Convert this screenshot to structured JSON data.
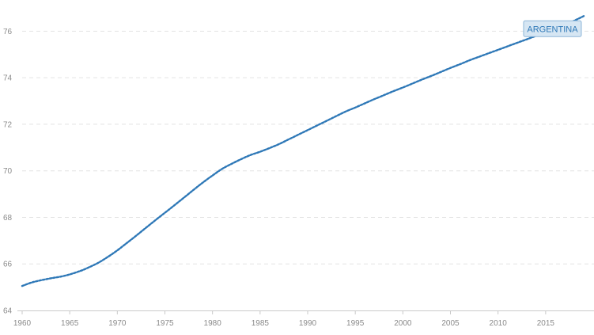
{
  "chart_data": {
    "type": "line",
    "title": "",
    "xlabel": "",
    "ylabel": "",
    "x": [
      1960,
      1961,
      1962,
      1963,
      1964,
      1965,
      1966,
      1967,
      1968,
      1969,
      1970,
      1971,
      1972,
      1973,
      1974,
      1975,
      1976,
      1977,
      1978,
      1979,
      1980,
      1981,
      1982,
      1983,
      1984,
      1985,
      1986,
      1987,
      1988,
      1989,
      1990,
      1991,
      1992,
      1993,
      1994,
      1995,
      1996,
      1997,
      1998,
      1999,
      2000,
      2001,
      2002,
      2003,
      2004,
      2005,
      2006,
      2007,
      2008,
      2009,
      2010,
      2011,
      2012,
      2013,
      2014,
      2015,
      2016,
      2017,
      2018,
      2019
    ],
    "series": [
      {
        "name": "ARGENTINA",
        "color": "#2e78b7",
        "values": [
          65.05,
          65.2,
          65.3,
          65.38,
          65.45,
          65.55,
          65.68,
          65.85,
          66.05,
          66.3,
          66.58,
          66.9,
          67.22,
          67.55,
          67.88,
          68.2,
          68.52,
          68.85,
          69.18,
          69.5,
          69.8,
          70.08,
          70.3,
          70.5,
          70.68,
          70.82,
          70.98,
          71.15,
          71.35,
          71.55,
          71.75,
          71.95,
          72.15,
          72.35,
          72.55,
          72.72,
          72.9,
          73.08,
          73.25,
          73.42,
          73.58,
          73.75,
          73.92,
          74.08,
          74.25,
          74.42,
          74.58,
          74.75,
          74.9,
          75.05,
          75.2,
          75.35,
          75.5,
          75.65,
          75.8,
          75.95,
          76.1,
          76.25,
          76.45,
          76.65
        ]
      }
    ],
    "ylim": [
      64,
      77
    ],
    "xlim": [
      1960,
      2019.5
    ],
    "y_ticks": [
      64,
      66,
      68,
      70,
      72,
      74,
      76
    ],
    "x_ticks": [
      1960,
      1965,
      1970,
      1975,
      1980,
      1985,
      1990,
      1995,
      2000,
      2005,
      2010,
      2015
    ],
    "grid": true,
    "legend": "inline label at end of line"
  }
}
